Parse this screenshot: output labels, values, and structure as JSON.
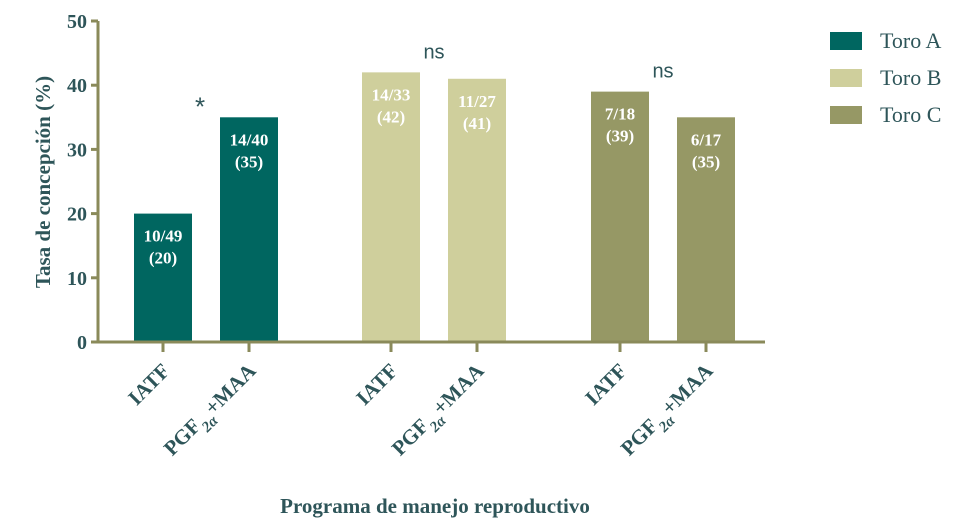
{
  "chart_data": {
    "type": "bar",
    "ylabel": "Tasa de concepción (%)",
    "xlabel": "Programa de manejo reproductivo",
    "ylim": [
      0,
      50
    ],
    "yticks": [
      "0",
      "10",
      "20",
      "30",
      "40",
      "50"
    ],
    "legend_position": "top-right",
    "grid": false,
    "axis_color": "#8a8a5a",
    "text_color": "#2e5559",
    "groups": [
      {
        "series": "Toro A",
        "color": "#006660",
        "annotation": "*",
        "bars": [
          {
            "category": "IATF",
            "category_sub": "",
            "category_tail": "",
            "value": 20,
            "label_top": "10/49",
            "label_bottom": "(20)"
          },
          {
            "category": "PGF",
            "category_sub": "2α",
            "category_tail": "+MAA",
            "value": 35,
            "label_top": "14/40",
            "label_bottom": "(35)"
          }
        ]
      },
      {
        "series": "Toro B",
        "color": "#cfcf9c",
        "annotation": "ns",
        "bars": [
          {
            "category": "IATF",
            "category_sub": "",
            "category_tail": "",
            "value": 42,
            "label_top": "14/33",
            "label_bottom": "(42)"
          },
          {
            "category": "PGF",
            "category_sub": "2α",
            "category_tail": "+MAA",
            "value": 41,
            "label_top": "11/27",
            "label_bottom": "(41)"
          }
        ]
      },
      {
        "series": "Toro C",
        "color": "#969865",
        "annotation": "ns",
        "bars": [
          {
            "category": "IATF",
            "category_sub": "",
            "category_tail": "",
            "value": 39,
            "label_top": "7/18",
            "label_bottom": "(39)"
          },
          {
            "category": "PGF",
            "category_sub": "2α",
            "category_tail": "+MAA",
            "value": 35,
            "label_top": "6/17",
            "label_bottom": "(35)"
          }
        ]
      }
    ],
    "legend": [
      {
        "name": "Toro A",
        "color": "#006660"
      },
      {
        "name": "Toro B",
        "color": "#cfcf9c"
      },
      {
        "name": "Toro C",
        "color": "#969865"
      }
    ]
  }
}
